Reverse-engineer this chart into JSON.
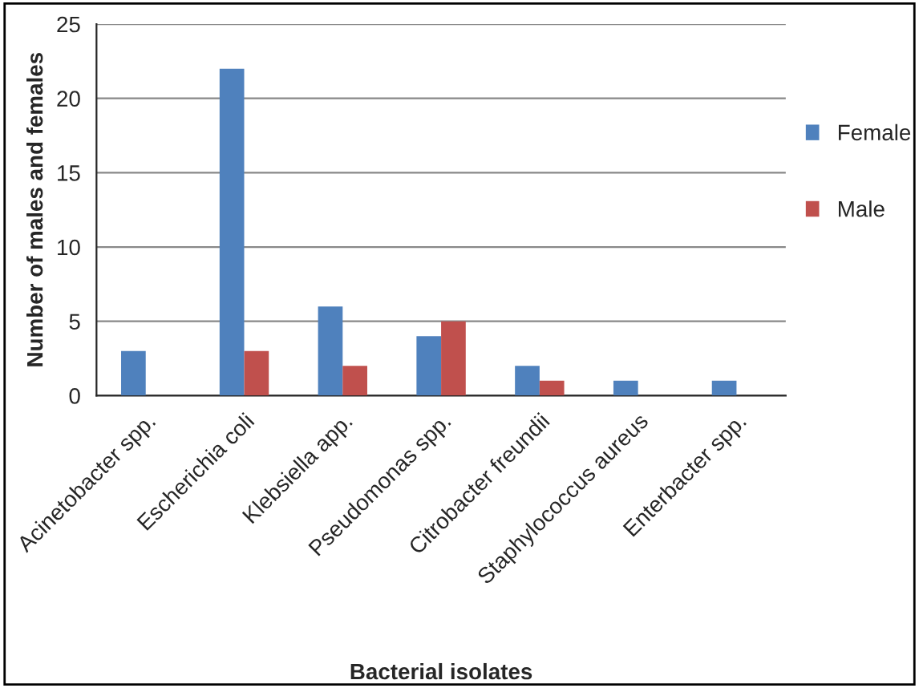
{
  "chart_data": {
    "type": "bar",
    "xlabel": "Bacterial isolates",
    "ylabel": "Number of males and females",
    "categories": [
      "Acinetobacter spp.",
      "Escherichia coli",
      "Klebsiella app.",
      "Pseudomonas spp.",
      "Citrobacter freundii",
      "Staphylococcus aureus",
      "Enterbacter spp."
    ],
    "series": [
      {
        "name": "Female",
        "color": "#4f81bd",
        "values": [
          3,
          22,
          6,
          4,
          2,
          1,
          1
        ]
      },
      {
        "name": "Male",
        "color": "#c0504d",
        "values": [
          null,
          3,
          2,
          5,
          1,
          null,
          null
        ]
      }
    ],
    "ylim": [
      0,
      25
    ],
    "yticks": [
      0,
      5,
      10,
      15,
      20,
      25
    ],
    "grid": "y",
    "legend": "right"
  }
}
